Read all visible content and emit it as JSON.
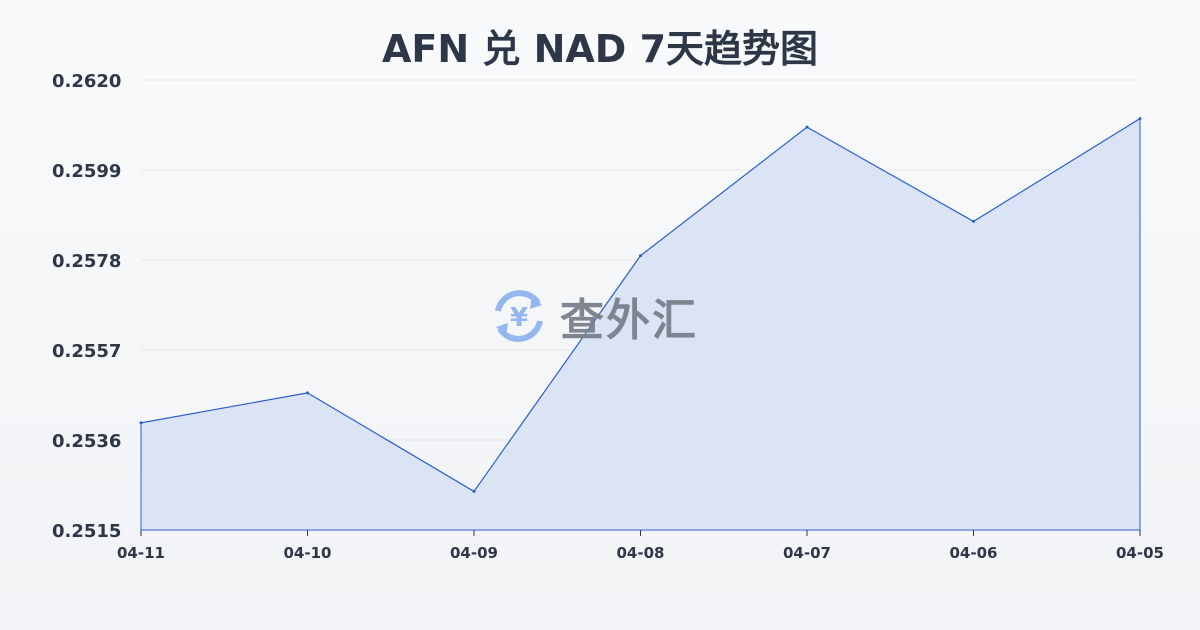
{
  "chart_data": {
    "type": "area",
    "title": "AFN 兑 NAD 7天趋势图",
    "categories": [
      "04-11",
      "04-10",
      "04-09",
      "04-08",
      "04-07",
      "04-06",
      "04-05"
    ],
    "values": [
      0.254,
      0.2547,
      0.2524,
      0.2579,
      0.2609,
      0.2587,
      0.2611
    ],
    "yticks": [
      "0.2620",
      "0.2599",
      "0.2578",
      "0.2557",
      "0.2536",
      "0.2515"
    ],
    "ylim": [
      0.2515,
      0.262
    ],
    "grid": true,
    "line_color": "#2b5fcf",
    "fill_color": "#d6e0f5"
  },
  "watermark": {
    "text": "查外汇",
    "icon": "yen-exchange-icon",
    "icon_color": "#8fb4ef"
  }
}
